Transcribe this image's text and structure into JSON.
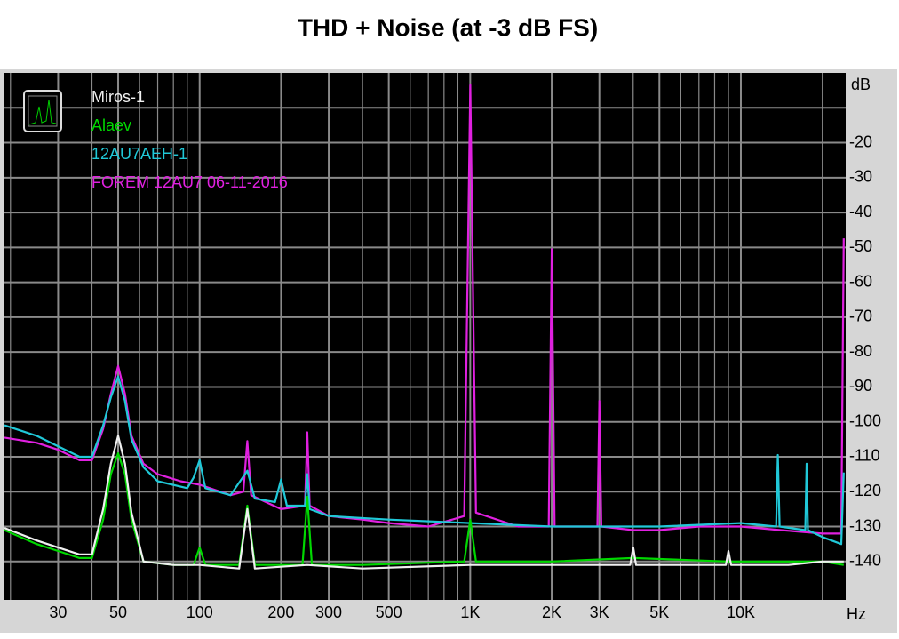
{
  "chart_data": {
    "type": "line",
    "title": "THD + Noise (at -3 dB FS)",
    "y_unit": "dB",
    "x_unit": "Hz",
    "log_x": true,
    "grid": true,
    "xlim": [
      19,
      24400
    ],
    "ylim": [
      -151,
      0
    ],
    "xticks": [
      30,
      50,
      100,
      200,
      300,
      500,
      {
        "value": 1000,
        "label": "1K"
      },
      {
        "value": 2000,
        "label": "2K"
      },
      {
        "value": 3000,
        "label": "3K"
      },
      {
        "value": 5000,
        "label": "5K"
      },
      {
        "value": 10000,
        "label": "10K"
      }
    ],
    "x_minor_grid": [
      20,
      40,
      60,
      70,
      80,
      90,
      400,
      600,
      700,
      800,
      900,
      4000,
      6000,
      7000,
      8000,
      9000,
      20000
    ],
    "yticks": [
      -20,
      -30,
      -40,
      -50,
      -60,
      -70,
      -80,
      -90,
      -100,
      -110,
      -120,
      -130,
      -140
    ],
    "y_minor_grid": [
      -10
    ],
    "series": [
      {
        "name": "Miros-1",
        "color": "#f0f0f0",
        "x": [
          19,
          25,
          30,
          36,
          40,
          44,
          47,
          50,
          53,
          56,
          62,
          80,
          100,
          140,
          150,
          160,
          250,
          400,
          1000,
          2000,
          3900,
          4000,
          4100,
          6000,
          8800,
          9000,
          9200,
          15000,
          20000,
          24000
        ],
        "values": [
          -130.4,
          -134,
          -136,
          -138,
          -138,
          -125,
          -112,
          -104,
          -112,
          -126,
          -140,
          -141,
          -141,
          -142,
          -125,
          -142,
          -141,
          -142,
          -141,
          -141,
          -141,
          -136,
          -141,
          -141,
          -141,
          -137,
          -141,
          -141,
          -140,
          -140
        ]
      },
      {
        "name": "Alaev",
        "color": "#00d800",
        "x": [
          19,
          25,
          30,
          36,
          40,
          44,
          47,
          50,
          53,
          56,
          62,
          80,
          95,
          100,
          105,
          140,
          150,
          160,
          240,
          250,
          260,
          400,
          950,
          1000,
          1050,
          2000,
          4000,
          9000,
          20000,
          24000
        ],
        "values": [
          -131,
          -135,
          -137,
          -139,
          -139,
          -128,
          -115,
          -109,
          -115,
          -128,
          -140,
          -141,
          -141,
          -136,
          -141,
          -141,
          -124,
          -141,
          -141,
          -121.5,
          -141,
          -141,
          -140,
          -128,
          -140,
          -140,
          -139,
          -140,
          -140,
          -141
        ]
      },
      {
        "name": "12AU7AEH-1",
        "color": "#20c8d8",
        "x": [
          19,
          25,
          30,
          36,
          40,
          44,
          47,
          50,
          53,
          56,
          62,
          70,
          90,
          95,
          100,
          105,
          130,
          150,
          160,
          190,
          200,
          210,
          245,
          250,
          255,
          300,
          500,
          1000,
          2000,
          5000,
          10000,
          13500,
          13700,
          13900,
          17300,
          17500,
          17700,
          20000,
          23500,
          24000
        ],
        "values": [
          -101,
          -104,
          -107,
          -110,
          -110,
          -101,
          -93,
          -87,
          -94,
          -105,
          -113,
          -117,
          -119,
          -116,
          -111,
          -119,
          -121,
          -114,
          -122,
          -123,
          -116.5,
          -124,
          -124,
          -115,
          -125,
          -127,
          -128,
          -129,
          -130,
          -130,
          -129,
          -130,
          -109.5,
          -130,
          -131,
          -112,
          -131,
          -133,
          -135,
          -114.5
        ]
      },
      {
        "name": "FOREM 12AU7 06-11-2016",
        "color": "#e020e0",
        "x": [
          19,
          25,
          30,
          36,
          40,
          44,
          47,
          50,
          53,
          56,
          62,
          70,
          85,
          100,
          130,
          145,
          150,
          155,
          200,
          245,
          250,
          255,
          300,
          400,
          500,
          700,
          950,
          1000,
          1050,
          1500,
          1950,
          2000,
          2050,
          2950,
          3000,
          3050,
          4000,
          5000,
          7000,
          10000,
          14000,
          20000,
          23500,
          24000
        ],
        "values": [
          -104.5,
          -106,
          -108,
          -111,
          -111,
          -102,
          -92,
          -84,
          -92,
          -104,
          -112,
          -115,
          -117,
          -118,
          -121,
          -120,
          -105.5,
          -121,
          -125,
          -124,
          -103,
          -124,
          -127,
          -128,
          -129,
          -130,
          -127,
          -3.5,
          -126,
          -130,
          -130,
          -50.5,
          -130,
          -130,
          -94,
          -130,
          -131,
          -131,
          -130,
          -130,
          -131,
          -132,
          -132,
          -47.4
        ]
      }
    ]
  }
}
